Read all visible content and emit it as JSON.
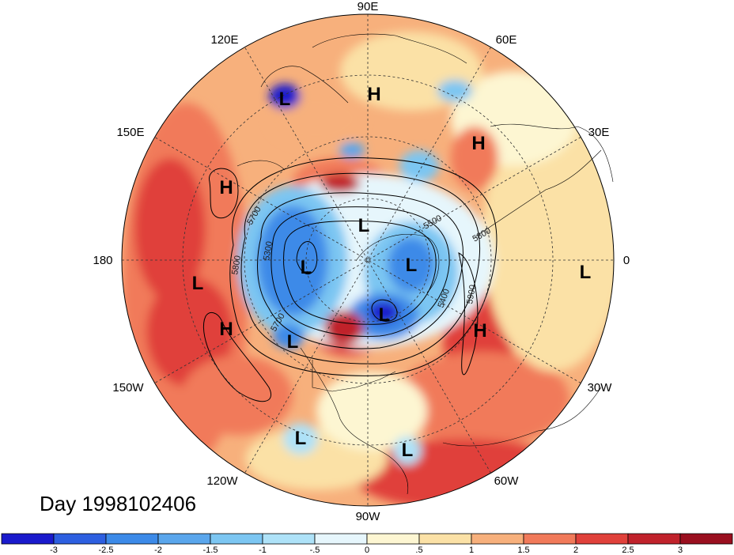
{
  "title": "Day 1998102406",
  "longitude_labels": [
    "90E",
    "60E",
    "30E",
    "0",
    "30W",
    "60W",
    "90W",
    "120W",
    "150W",
    "180",
    "150E",
    "120E"
  ],
  "pressure_systems": [
    {
      "type": "L"
    },
    {
      "type": "H"
    },
    {
      "type": "H"
    },
    {
      "type": "H"
    },
    {
      "type": "L"
    },
    {
      "type": "L"
    },
    {
      "type": "L"
    },
    {
      "type": "L"
    },
    {
      "type": "L"
    },
    {
      "type": "H"
    },
    {
      "type": "L"
    },
    {
      "type": "H"
    },
    {
      "type": "L"
    },
    {
      "type": "L"
    },
    {
      "type": "L"
    }
  ],
  "contour_labels": [
    "5700",
    "5800",
    "5300",
    "5700",
    "5400",
    "5500",
    "5800",
    "5900"
  ],
  "colorbar": {
    "labels": [
      "-3",
      "-2.5",
      "-2",
      "-1.5",
      "-1",
      "-.5",
      "0",
      ".5",
      "1",
      "1.5",
      "2",
      "2.5",
      "3"
    ],
    "colors": [
      "#1a1acc",
      "#2d5fe0",
      "#3c8ae8",
      "#5aa6ec",
      "#7cc6f2",
      "#aee2f8",
      "#e6f6fc",
      "#fdf6d2",
      "#fbe1a6",
      "#f7b07c",
      "#f17a5a",
      "#e0413b",
      "#c0222b",
      "#9a0f1f"
    ]
  }
}
